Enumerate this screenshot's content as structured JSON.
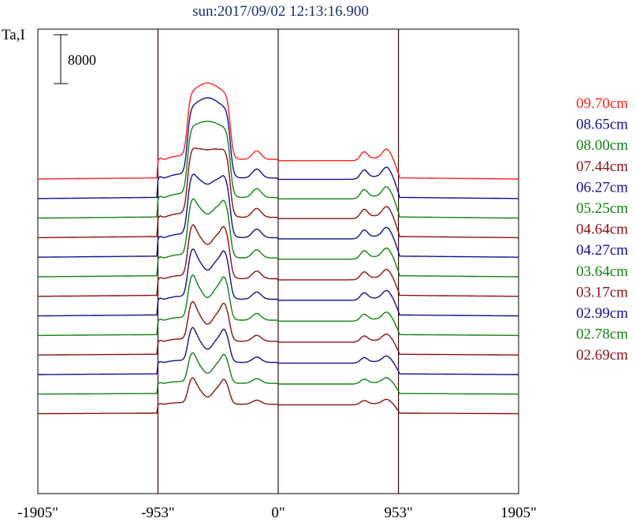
{
  "chart_data": {
    "type": "line",
    "title": "sun:2017/09/02 12:13:16.900",
    "ylabel": "Ta,I",
    "scale_bar_label": "8000",
    "x_ticks": [
      {
        "value": -1905,
        "label": "-1905\""
      },
      {
        "value": -953,
        "label": "-953\""
      },
      {
        "value": 0,
        "label": "0\""
      },
      {
        "value": 953,
        "label": "953\""
      },
      {
        "value": 1905,
        "label": "1905\""
      }
    ],
    "xlim": [
      -1905,
      1905
    ],
    "vertical_lines": [
      -953,
      0,
      953
    ],
    "colors": {
      "red": "#ff2020",
      "navy": "#101090",
      "green": "#108010",
      "maroon": "#8b1010"
    },
    "legend_position": "right",
    "series": [
      {
        "name": "09.70cm",
        "color": "#ff2020",
        "baseline": 0,
        "scale": 1.0,
        "dip": 0.0
      },
      {
        "name": "08.65cm",
        "color": "#101090",
        "baseline": -3200,
        "scale": 1.05,
        "dip": 0.0
      },
      {
        "name": "08.00cm",
        "color": "#108010",
        "baseline": -6400,
        "scale": 1.05,
        "dip": 0.05
      },
      {
        "name": "07.44cm",
        "color": "#8b1010",
        "baseline": -9600,
        "scale": 1.04,
        "dip": 0.15
      },
      {
        "name": "06.27cm",
        "color": "#101090",
        "baseline": -12800,
        "scale": 1.0,
        "dip": 0.3
      },
      {
        "name": "05.25cm",
        "color": "#108010",
        "baseline": -16000,
        "scale": 0.96,
        "dip": 0.4
      },
      {
        "name": "04.64cm",
        "color": "#8b1010",
        "baseline": -19200,
        "scale": 0.9,
        "dip": 0.5
      },
      {
        "name": "04.27cm",
        "color": "#101090",
        "baseline": -22400,
        "scale": 0.85,
        "dip": 0.55
      },
      {
        "name": "03.64cm",
        "color": "#108010",
        "baseline": -25600,
        "scale": 0.78,
        "dip": 0.62
      },
      {
        "name": "03.17cm",
        "color": "#8b1010",
        "baseline": -28800,
        "scale": 0.7,
        "dip": 0.68
      },
      {
        "name": "02.99cm",
        "color": "#101090",
        "baseline": -32000,
        "scale": 0.62,
        "dip": 0.72
      },
      {
        "name": "02.78cm",
        "color": "#108010",
        "baseline": -35200,
        "scale": 0.55,
        "dip": 0.76
      },
      {
        "name": "02.69cm",
        "color": "#8b1010",
        "baseline": -38400,
        "scale": 0.48,
        "dip": 0.8
      }
    ]
  }
}
